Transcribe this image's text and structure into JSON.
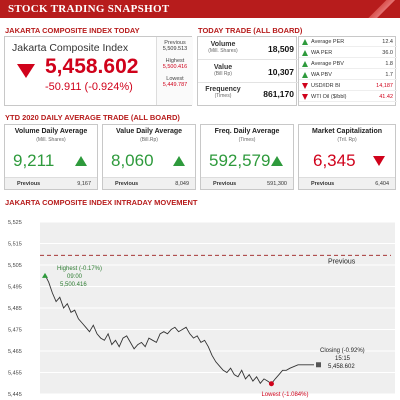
{
  "banner": {
    "title": "STOCK TRADING SNAPSHOT"
  },
  "sections": {
    "jci_today": "JAKARTA COMPOSITE INDEX TODAY",
    "today_trade": "TODAY TRADE (ALL BOARD)",
    "ytd": "YTD 2020 DAILY AVERAGE TRADE (ALL BOARD)",
    "intraday": "JAKARTA COMPOSITE INDEX INTRADAY MOVEMENT"
  },
  "jci": {
    "name": "Jakarta Composite Index",
    "value": "5,458.602",
    "change": "-50.911 (-0.924%)",
    "direction_icon": "down-arrow-icon",
    "previous_label": "Previous",
    "previous_value": "5,509.513",
    "highest_label": "Highest",
    "highest_value": "5,500.416",
    "lowest_label": "Lowest",
    "lowest_value": "5,449.787"
  },
  "today_trade": [
    {
      "label": "Volume",
      "sub": "(Mill. Shares)",
      "value": "18,509"
    },
    {
      "label": "Value",
      "sub": "(Bill Rp)",
      "value": "10,307"
    },
    {
      "label": "Frequency",
      "sub": "(Times)",
      "value": "861,170"
    }
  ],
  "indicators": [
    {
      "name": "Average PER",
      "value": "12.4",
      "dir": "up"
    },
    {
      "name": "WA PER",
      "value": "36.0",
      "dir": "up"
    },
    {
      "name": "Average PBV",
      "value": "1.8",
      "dir": "up"
    },
    {
      "name": "WA PBV",
      "value": "1.7",
      "dir": "up"
    },
    {
      "name": "USD/IDR BI",
      "value": "14,187",
      "dir": "down"
    },
    {
      "name": "WTI Oil ($/bbl)",
      "value": "41.42",
      "dir": "down"
    }
  ],
  "ytd": [
    {
      "title": "Volume Daily Average",
      "unit": "(Mill. Shares)",
      "value": "9,211",
      "dir": "up",
      "prev_label": "Previous",
      "prev_value": "9,167"
    },
    {
      "title": "Value Daily Average",
      "unit": "(Bill.Rp)",
      "value": "8,060",
      "dir": "up",
      "prev_label": "Previous",
      "prev_value": "8,049"
    },
    {
      "title": "Freq. Daily Average",
      "unit": "(Times)",
      "value": "592,579",
      "dir": "up",
      "prev_label": "Previous",
      "prev_value": "591,300"
    },
    {
      "title": "Market Capitalization",
      "unit": "(Tril. Rp)",
      "value": "6,345",
      "dir": "down",
      "prev_label": "Previous",
      "prev_value": "6,404"
    }
  ],
  "colors": {
    "brand_red": "#b71c1c",
    "down_red": "#d0021b",
    "up_green": "#2e9a3c"
  },
  "chart_data": {
    "type": "line",
    "yticks": [
      "5,525",
      "5,515",
      "5,505",
      "5,495",
      "5,485",
      "5,475",
      "5,465",
      "5,455",
      "5,445"
    ],
    "ylim": [
      5445,
      5525
    ],
    "previous_line": {
      "label": "Previous",
      "value": 5509.513
    },
    "annotations": {
      "highest": {
        "label": "Highest (-0.17%)",
        "time": "09:00",
        "value_label": "5,500.416",
        "value": 5500.416
      },
      "closing": {
        "label": "Closing (-0.92%)",
        "time": "15:15",
        "value_label": "5,458.602",
        "value": 5458.602
      },
      "lowest": {
        "label": "Lowest (-1.084%)",
        "value": 5449.787
      }
    },
    "series": [
      {
        "values": [
          5500.4,
          5497,
          5492,
          5488,
          5490,
          5485,
          5487,
          5483,
          5484,
          5480,
          5478,
          5476,
          5474,
          5477,
          5473,
          5471,
          5470,
          5473,
          5468,
          5470,
          5467,
          5471,
          5472,
          5469,
          5466,
          5468,
          5469,
          5467,
          5471,
          5470,
          5469,
          5473,
          5474,
          5473,
          5475,
          5476,
          5474,
          5475,
          5476,
          5473,
          5471,
          5472,
          5469,
          5470,
          5467,
          5463,
          5460,
          5458,
          5456,
          5455,
          5457,
          5454,
          5453,
          5456,
          5452,
          5454,
          5451,
          5453,
          5450,
          5452,
          5451,
          5449.8,
          5452,
          5454,
          5456,
          5456,
          5457,
          5458.6,
          5458.6,
          5458.6
        ]
      }
    ]
  }
}
